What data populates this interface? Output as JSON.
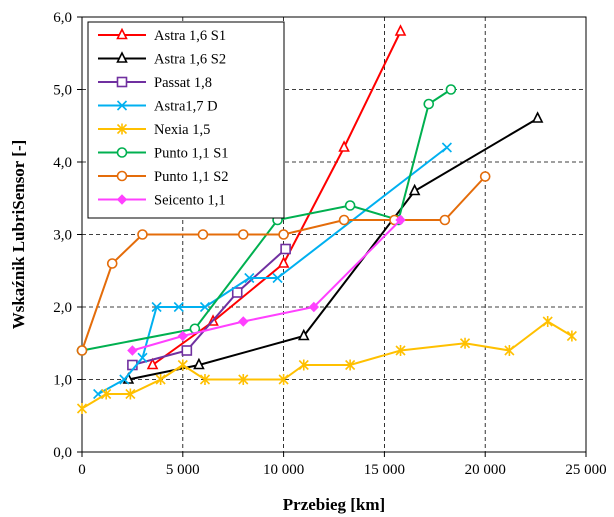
{
  "chart_data": {
    "type": "line",
    "title": "",
    "xlabel": "Przebieg [km]",
    "ylabel": "Wskaźnik LubriSensor [-]",
    "xlim": [
      0,
      25000
    ],
    "ylim": [
      0,
      6
    ],
    "x_ticks": [
      0,
      5000,
      10000,
      15000,
      20000,
      25000
    ],
    "x_tick_labels": [
      "0",
      "5 000",
      "10 000",
      "15 000",
      "20 000",
      "25 000"
    ],
    "y_ticks": [
      0,
      1,
      2,
      3,
      4,
      5,
      6
    ],
    "y_tick_labels": [
      "0,0",
      "1,0",
      "2,0",
      "3,0",
      "4,0",
      "5,0",
      "6,0"
    ],
    "grid": true,
    "legend_position": "top-left",
    "series": [
      {
        "name": "Astra 1,6 S1",
        "color": "#ff0000",
        "marker": "triangle",
        "x": [
          3500,
          6500,
          10000,
          13000,
          15800
        ],
        "y": [
          1.2,
          1.8,
          2.6,
          4.2,
          5.8
        ]
      },
      {
        "name": "Astra 1,6 S2",
        "color": "#000000",
        "marker": "triangle",
        "x": [
          2300,
          5800,
          11000,
          16500,
          22600
        ],
        "y": [
          1.0,
          1.2,
          1.6,
          3.6,
          4.6
        ]
      },
      {
        "name": "Passat 1,8",
        "color": "#7030a0",
        "marker": "square",
        "x": [
          2500,
          5200,
          7700,
          10100
        ],
        "y": [
          1.2,
          1.4,
          2.2,
          2.8
        ]
      },
      {
        "name": "Astra1,7 D",
        "color": "#00b0f0",
        "marker": "x",
        "x": [
          800,
          2100,
          3000,
          3700,
          4800,
          6100,
          8300,
          9700,
          18100
        ],
        "y": [
          0.8,
          1.0,
          1.3,
          2.0,
          2.0,
          2.0,
          2.4,
          2.4,
          4.2
        ]
      },
      {
        "name": "Nexia 1,5",
        "color": "#ffc000",
        "marker": "star",
        "x": [
          0,
          1200,
          2400,
          3900,
          5000,
          6100,
          8000,
          10000,
          11000,
          13300,
          15800,
          19000,
          21200,
          23100,
          24300
        ],
        "y": [
          0.6,
          0.8,
          0.8,
          1.0,
          1.2,
          1.0,
          1.0,
          1.0,
          1.2,
          1.2,
          1.4,
          1.5,
          1.4,
          1.8,
          1.6
        ]
      },
      {
        "name": "Punto 1,1 S1",
        "color": "#00b050",
        "marker": "circle",
        "x": [
          0,
          5600,
          9700,
          13300,
          15700,
          17200,
          18300
        ],
        "y": [
          1.4,
          1.7,
          3.2,
          3.4,
          3.2,
          4.8,
          5.0
        ]
      },
      {
        "name": "Punto 1,1 S2",
        "color": "#e46c0a",
        "marker": "circle",
        "x": [
          0,
          1500,
          3000,
          6000,
          8000,
          10000,
          13000,
          15500,
          18000,
          20000
        ],
        "y": [
          1.4,
          2.6,
          3.0,
          3.0,
          3.0,
          3.0,
          3.2,
          3.2,
          3.2,
          3.8
        ]
      },
      {
        "name": "Seicento 1,1",
        "color": "#ff40ff",
        "marker": "diamond",
        "x": [
          2500,
          5000,
          8000,
          11500,
          15800
        ],
        "y": [
          1.4,
          1.6,
          1.8,
          2.0,
          3.2
        ]
      }
    ]
  }
}
